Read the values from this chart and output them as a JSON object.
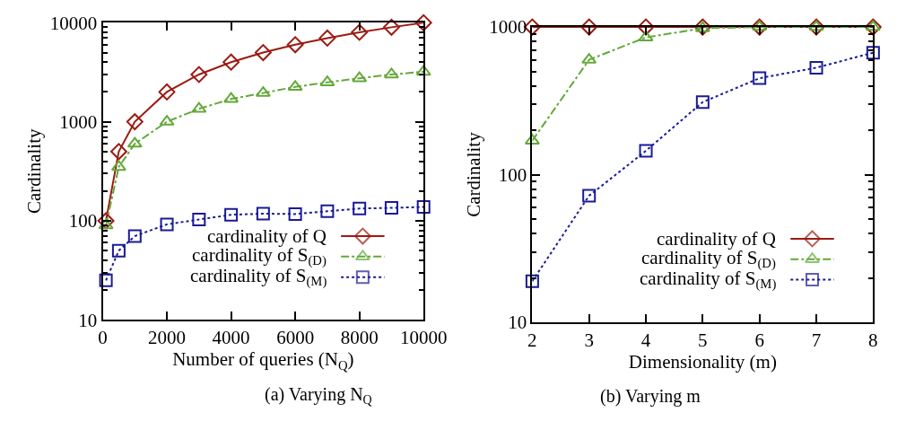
{
  "chart_data": [
    {
      "type": "line",
      "title": "(a) Varying N$_{Q}$",
      "xlabel": "Number of queries (N$_{Q}$)",
      "ylabel": "Cardinality",
      "x": [
        100,
        500,
        1000,
        2000,
        3000,
        4000,
        5000,
        6000,
        7000,
        8000,
        9000,
        10000
      ],
      "xlim": [
        0,
        10000
      ],
      "xticks": [
        0,
        2000,
        4000,
        6000,
        8000,
        10000
      ],
      "ylim": [
        10,
        10000
      ],
      "yticks": [
        10,
        100,
        1000,
        10000
      ],
      "log": "y",
      "legend": "bottom right",
      "series": [
        {
          "name": "cardinality of Q",
          "color": "#9b1b12",
          "marker": "diamond",
          "line_style": "solid",
          "values": [
            100,
            500,
            1000,
            2000,
            3000,
            4000,
            5000,
            6000,
            7000,
            8000,
            9000,
            10000
          ]
        },
        {
          "name": "cardinality of S$_{(D)}$",
          "color": "#64a83a",
          "marker": "triangle",
          "line_style": "dashdot",
          "values": [
            90,
            350,
            600,
            1000,
            1350,
            1700,
            1950,
            2250,
            2500,
            2750,
            3000,
            3200
          ]
        },
        {
          "name": "cardinality of S$_{(M)}$",
          "color": "#1a1a96",
          "marker": "square",
          "line_style": "dotted",
          "values": [
            25,
            50,
            70,
            92,
            103,
            115,
            118,
            117,
            125,
            133,
            135,
            138
          ]
        }
      ]
    },
    {
      "type": "line",
      "title": "(b) Varying m",
      "xlabel": "Dimensionality (m)",
      "ylabel": "Cardinality",
      "x": [
        2,
        3,
        4,
        5,
        6,
        7,
        8
      ],
      "xlim": [
        2,
        8
      ],
      "xticks": [
        2,
        3,
        4,
        5,
        6,
        7,
        8
      ],
      "ylim": [
        10,
        1000
      ],
      "yticks": [
        10,
        100,
        1000
      ],
      "log": "y",
      "legend": "bottom right",
      "series": [
        {
          "name": "cardinality of Q",
          "color": "#9b1b12",
          "marker": "diamond",
          "line_style": "solid",
          "values": [
            1000,
            1000,
            1000,
            1000,
            1000,
            1000,
            1000
          ]
        },
        {
          "name": "cardinality of S$_{(D)}$",
          "color": "#64a83a",
          "marker": "triangle",
          "line_style": "dashdot",
          "values": [
            170,
            600,
            850,
            980,
            1000,
            1000,
            1000
          ]
        },
        {
          "name": "cardinality of S$_{(M)}$",
          "color": "#1a1a96",
          "marker": "square",
          "line_style": "dotted",
          "values": [
            19,
            72,
            145,
            310,
            450,
            530,
            670
          ]
        }
      ]
    }
  ]
}
